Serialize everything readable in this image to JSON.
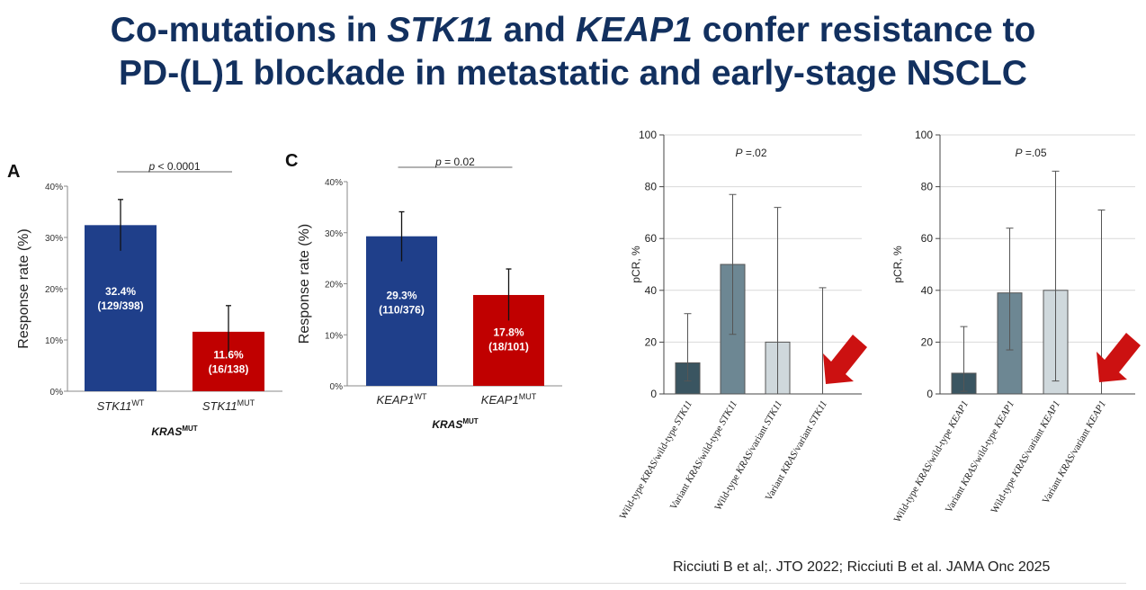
{
  "slide": {
    "title_line1": {
      "t1": "Co-mutations in ",
      "t2": "STK11",
      "t3": " and ",
      "t4": "KEAP1",
      "t5": " confer resistance to"
    },
    "title_line2": "PD-(L)1 blockade in metastatic and early-stage NSCLC",
    "citation": "Ricciuti B et al;. JTO 2022; Ricciuti B et al. JAMA Onc 2025"
  },
  "colors": {
    "title": "#12305f",
    "blue_bar": "#1f3f8a",
    "red_bar": "#c00000",
    "dark_bar": "#3a5561",
    "mid_bar": "#6d8793",
    "light_bar": "#cfd8dc",
    "arrow": "#cc1111"
  },
  "chart_data": [
    {
      "panel": "A",
      "type": "bar",
      "ylabel": "Response rate (%)",
      "xlabel": "KRAS",
      "xlabel_sup": "MUT",
      "ylim": [
        0,
        40
      ],
      "yticks": [
        "0%",
        "10%",
        "20%",
        "30%",
        "40%"
      ],
      "categories": [
        {
          "base": "STK11",
          "sup": "WT"
        },
        {
          "base": "STK11",
          "sup": "MUT"
        }
      ],
      "values": [
        32.4,
        11.6
      ],
      "error_high": [
        37.4,
        16.7
      ],
      "error_low": [
        27.4,
        6.5
      ],
      "bar_labels": [
        {
          "pct": "32.4%",
          "count": "(129/398)"
        },
        {
          "pct": "11.6%",
          "count": "(16/138)"
        }
      ],
      "p_label": {
        "p": "p",
        "rest": " < 0.0001"
      }
    },
    {
      "panel": "C",
      "type": "bar",
      "ylabel": "Response rate (%)",
      "xlabel": "KRAS",
      "xlabel_sup": "MUT",
      "ylim": [
        0,
        40
      ],
      "yticks": [
        "0%",
        "10%",
        "20%",
        "30%",
        "40%"
      ],
      "categories": [
        {
          "base": "KEAP1",
          "sup": "WT"
        },
        {
          "base": "KEAP1",
          "sup": "MUT"
        }
      ],
      "values": [
        29.3,
        17.8
      ],
      "error_high": [
        34.1,
        22.9
      ],
      "error_low": [
        24.4,
        12.8
      ],
      "bar_labels": [
        {
          "pct": "29.3%",
          "count": "(110/376)"
        },
        {
          "pct": "17.8%",
          "count": "(18/101)"
        }
      ],
      "p_label": {
        "p": "p",
        "rest": " = 0.02"
      }
    },
    {
      "panel": "STK11-pCR",
      "type": "bar",
      "ylabel": "pCR, %",
      "ylim": [
        0,
        100
      ],
      "yticks": [
        "0",
        "20",
        "40",
        "60",
        "80",
        "100"
      ],
      "grid": true,
      "categories": [
        "Wild-type KRAS/wild-type STK11",
        "Variant KRAS/wild-type STK11",
        "Wild-type KRAS/variant STK11",
        "Variant KRAS/variant STK11"
      ],
      "values": [
        12,
        50,
        20,
        0
      ],
      "error_high": [
        31,
        77,
        72,
        41
      ],
      "error_low": [
        5,
        23,
        0,
        0
      ],
      "p_label": {
        "p": "P",
        "rest": " =.02"
      }
    },
    {
      "panel": "KEAP1-pCR",
      "type": "bar",
      "ylabel": "pCR, %",
      "ylim": [
        0,
        100
      ],
      "yticks": [
        "0",
        "20",
        "40",
        "60",
        "80",
        "100"
      ],
      "grid": true,
      "categories": [
        "Wild-type KRAS/wild-type KEAP1",
        "Variant KRAS/wild-type KEAP1",
        "Wild-type KRAS/variant KEAP1",
        "Variant KRAS/variant KEAP1"
      ],
      "values": [
        8,
        39,
        40,
        0
      ],
      "error_high": [
        26,
        64,
        86,
        71
      ],
      "error_low": [
        1,
        17,
        5,
        0
      ],
      "p_label": {
        "p": "P",
        "rest": " =.05"
      }
    }
  ]
}
